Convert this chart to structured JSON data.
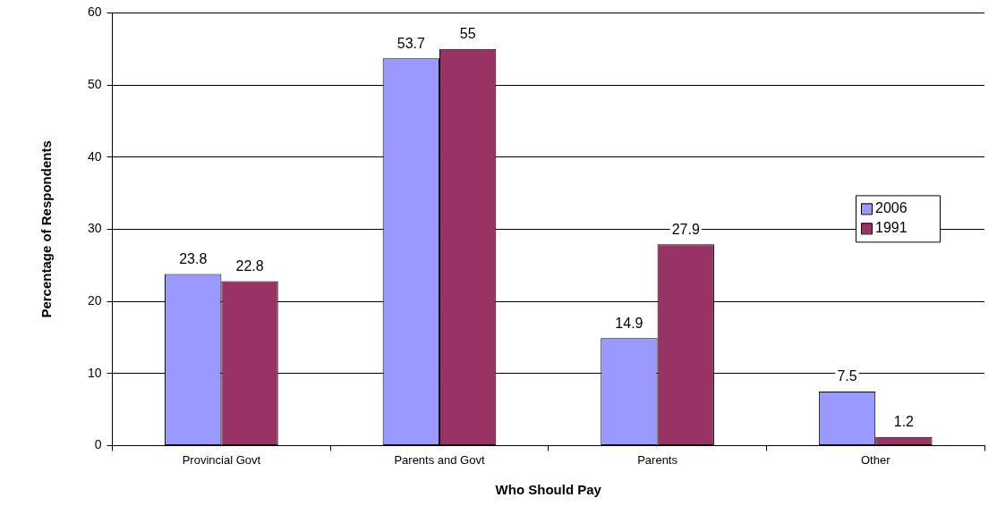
{
  "chart_data": {
    "type": "bar",
    "xlabel": "Who Should Pay",
    "ylabel": "Percentage of Respondents",
    "categories": [
      "Provincial Govt",
      "Parents and Govt",
      "Parents",
      "Other"
    ],
    "series": [
      {
        "name": "2006",
        "color": "#9999ff",
        "values": [
          23.8,
          53.7,
          14.9,
          7.5
        ]
      },
      {
        "name": "1991",
        "color": "#993366",
        "values": [
          22.8,
          55,
          27.9,
          1.2
        ]
      }
    ],
    "ylim": [
      0,
      60
    ],
    "yticks": [
      0,
      10,
      20,
      30,
      40,
      50,
      60
    ],
    "grid": "y",
    "legend": "right",
    "data_labels": true
  }
}
